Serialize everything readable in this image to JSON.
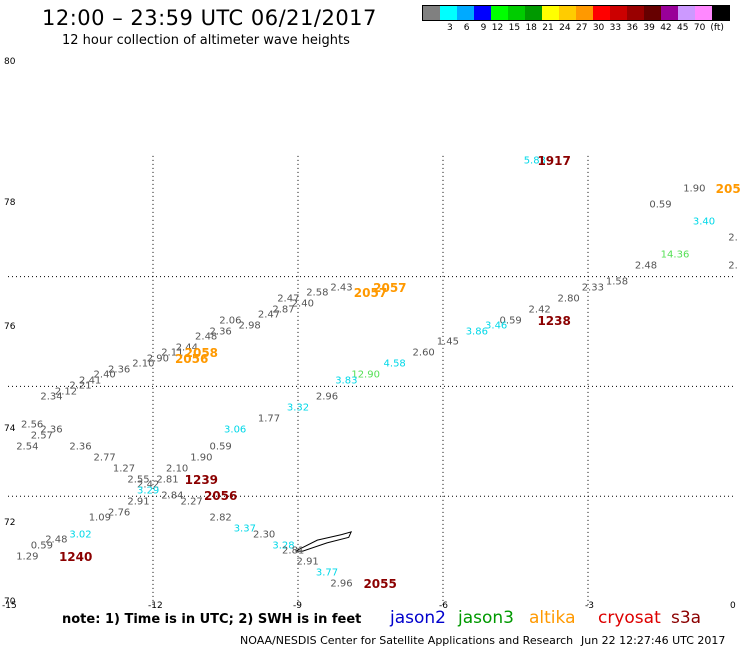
{
  "title": "12:00 – 23:59 UTC 06/21/2017",
  "subtitle": "12 hour collection of altimeter wave heights",
  "legend": {
    "colors": [
      "#808080",
      "#00ffff",
      "#00aaff",
      "#0000ff",
      "#00ff00",
      "#00cc00",
      "#009900",
      "#ffff00",
      "#ffcc00",
      "#ff9900",
      "#ff0000",
      "#cc0000",
      "#990000",
      "#660000",
      "#990099",
      "#cc99ff",
      "#ff88ff",
      "#000000"
    ],
    "ticks": [
      "3",
      "6",
      "9",
      "12",
      "15",
      "18",
      "21",
      "24",
      "27",
      "30",
      "33",
      "36",
      "39",
      "42",
      "45",
      "70"
    ],
    "unit": "(ft)"
  },
  "axes": {
    "y_ticks": [
      "80",
      "78",
      "76",
      "74",
      "72",
      "70"
    ],
    "x_ticks": [
      "-15",
      "-12",
      "-9",
      "-6",
      "-3",
      "0"
    ]
  },
  "labels": [
    {
      "t": "5.83",
      "s": "j2",
      "lon": -4.1,
      "lat": 78.1
    },
    {
      "t": "1917",
      "s": "cs",
      "lon": -3.7,
      "lat": 78.1
    },
    {
      "t": "1.90",
      "s": "gr",
      "lon": -0.8,
      "lat": 77.6
    },
    {
      "t": "205",
      "s": "al",
      "lon": -0.1,
      "lat": 77.6
    },
    {
      "t": "0.59",
      "s": "gr",
      "lon": -1.5,
      "lat": 77.3
    },
    {
      "t": "3.40",
      "s": "j2",
      "lon": -0.6,
      "lat": 77.0
    },
    {
      "t": "2.",
      "s": "gr",
      "lon": 0.0,
      "lat": 76.7
    },
    {
      "t": "2.",
      "s": "gr",
      "lon": 0.0,
      "lat": 76.2
    },
    {
      "t": "14.36",
      "s": "j3",
      "lon": -1.2,
      "lat": 76.4
    },
    {
      "t": "2.48",
      "s": "gr",
      "lon": -1.8,
      "lat": 76.2
    },
    {
      "t": "1.58",
      "s": "gr",
      "lon": -2.4,
      "lat": 75.9
    },
    {
      "t": "2.33",
      "s": "gr",
      "lon": -2.9,
      "lat": 75.8
    },
    {
      "t": "2.80",
      "s": "gr",
      "lon": -3.4,
      "lat": 75.6
    },
    {
      "t": "2.42",
      "s": "gr",
      "lon": -4.0,
      "lat": 75.4
    },
    {
      "t": "1238",
      "s": "cs",
      "lon": -3.7,
      "lat": 75.2
    },
    {
      "t": "0.59",
      "s": "gr",
      "lon": -4.6,
      "lat": 75.2
    },
    {
      "t": "3.46",
      "s": "j2",
      "lon": -4.9,
      "lat": 75.1
    },
    {
      "t": "3.86",
      "s": "j2",
      "lon": -5.3,
      "lat": 75.0
    },
    {
      "t": "1.45",
      "s": "gr",
      "lon": -5.9,
      "lat": 74.8
    },
    {
      "t": "2.60",
      "s": "gr",
      "lon": -6.4,
      "lat": 74.6
    },
    {
      "t": "4.58",
      "s": "j2",
      "lon": -7.0,
      "lat": 74.4
    },
    {
      "t": "12.90",
      "s": "j3",
      "lon": -7.6,
      "lat": 74.2
    },
    {
      "t": "3.83",
      "s": "j2",
      "lon": -8.0,
      "lat": 74.1
    },
    {
      "t": "2.96",
      "s": "gr",
      "lon": -8.4,
      "lat": 73.8
    },
    {
      "t": "3.32",
      "s": "j2",
      "lon": -9.0,
      "lat": 73.6
    },
    {
      "t": "1.77",
      "s": "gr",
      "lon": -9.6,
      "lat": 73.4
    },
    {
      "t": "3.06",
      "s": "j2",
      "lon": -10.3,
      "lat": 73.2
    },
    {
      "t": "0.59",
      "s": "gr",
      "lon": -10.6,
      "lat": 72.9
    },
    {
      "t": "1.90",
      "s": "gr",
      "lon": -11.0,
      "lat": 72.7
    },
    {
      "t": "2.10",
      "s": "gr",
      "lon": -11.5,
      "lat": 72.5
    },
    {
      "t": "1239",
      "s": "cs",
      "lon": -11.0,
      "lat": 72.3
    },
    {
      "t": "2.81",
      "s": "gr",
      "lon": -11.7,
      "lat": 72.3
    },
    {
      "t": "2.42",
      "s": "gr",
      "lon": -12.1,
      "lat": 72.2
    },
    {
      "t": "3.29",
      "s": "j2",
      "lon": -12.1,
      "lat": 72.1
    },
    {
      "t": "2.91",
      "s": "gr",
      "lon": -12.3,
      "lat": 71.9
    },
    {
      "t": "2.76",
      "s": "gr",
      "lon": -12.7,
      "lat": 71.7
    },
    {
      "t": "1.09",
      "s": "gr",
      "lon": -13.1,
      "lat": 71.6
    },
    {
      "t": "3.02",
      "s": "j2",
      "lon": -13.5,
      "lat": 71.3
    },
    {
      "t": "2.48",
      "s": "gr",
      "lon": -14.0,
      "lat": 71.2
    },
    {
      "t": "0.59",
      "s": "gr",
      "lon": -14.3,
      "lat": 71.1
    },
    {
      "t": "1240",
      "s": "cs",
      "lon": -13.6,
      "lat": 70.9
    },
    {
      "t": "1.29",
      "s": "gr",
      "lon": -14.6,
      "lat": 70.9
    },
    {
      "t": "2.56",
      "s": "gr",
      "lon": -14.5,
      "lat": 73.3
    },
    {
      "t": "2.36",
      "s": "gr",
      "lon": -14.1,
      "lat": 73.2
    },
    {
      "t": "2.57",
      "s": "gr",
      "lon": -14.3,
      "lat": 73.1
    },
    {
      "t": "2.54",
      "s": "gr",
      "lon": -14.6,
      "lat": 72.9
    },
    {
      "t": "2.36",
      "s": "gr",
      "lon": -13.5,
      "lat": 72.9
    },
    {
      "t": "2.77",
      "s": "gr",
      "lon": -13.0,
      "lat": 72.7
    },
    {
      "t": "1.27",
      "s": "gr",
      "lon": -12.6,
      "lat": 72.5
    },
    {
      "t": "2.55",
      "s": "gr",
      "lon": -12.3,
      "lat": 72.3
    },
    {
      "t": "2.84",
      "s": "gr",
      "lon": -11.6,
      "lat": 72.0
    },
    {
      "t": "2056",
      "s": "cs",
      "lon": -10.6,
      "lat": 72.0
    },
    {
      "t": "2.27",
      "s": "gr",
      "lon": -11.2,
      "lat": 71.9
    },
    {
      "t": "2.82",
      "s": "gr",
      "lon": -10.6,
      "lat": 71.6
    },
    {
      "t": "3.37",
      "s": "j2",
      "lon": -10.1,
      "lat": 71.4
    },
    {
      "t": "2.30",
      "s": "gr",
      "lon": -9.7,
      "lat": 71.3
    },
    {
      "t": "3.28",
      "s": "j2",
      "lon": -9.3,
      "lat": 71.1
    },
    {
      "t": "2.81",
      "s": "gr",
      "lon": -9.1,
      "lat": 71.0
    },
    {
      "t": "2.91",
      "s": "gr",
      "lon": -8.8,
      "lat": 70.8
    },
    {
      "t": "3.77",
      "s": "j2",
      "lon": -8.4,
      "lat": 70.6
    },
    {
      "t": "2.96",
      "s": "gr",
      "lon": -8.1,
      "lat": 70.4
    },
    {
      "t": "2055",
      "s": "cs",
      "lon": -7.3,
      "lat": 70.4
    },
    {
      "t": "2.34",
      "s": "gr",
      "lon": -14.1,
      "lat": 73.8
    },
    {
      "t": "2.12",
      "s": "gr",
      "lon": -13.8,
      "lat": 73.9
    },
    {
      "t": "2.21",
      "s": "gr",
      "lon": -13.5,
      "lat": 74.0
    },
    {
      "t": "2.41",
      "s": "gr",
      "lon": -13.3,
      "lat": 74.1
    },
    {
      "t": "2.40",
      "s": "gr",
      "lon": -13.0,
      "lat": 74.2
    },
    {
      "t": "2.36",
      "s": "gr",
      "lon": -12.7,
      "lat": 74.3
    },
    {
      "t": "2.10",
      "s": "gr",
      "lon": -12.2,
      "lat": 74.4
    },
    {
      "t": "2.90",
      "s": "gr",
      "lon": -11.9,
      "lat": 74.5
    },
    {
      "t": "2.44",
      "s": "gr",
      "lon": -11.3,
      "lat": 74.7
    },
    {
      "t": "2.11",
      "s": "gr",
      "lon": -11.6,
      "lat": 74.6
    },
    {
      "t": "2.48",
      "s": "gr",
      "lon": -10.9,
      "lat": 74.9
    },
    {
      "t": "2.36",
      "s": "gr",
      "lon": -10.6,
      "lat": 75.0
    },
    {
      "t": "2.98",
      "s": "gr",
      "lon": -10.0,
      "lat": 75.1
    },
    {
      "t": "2.06",
      "s": "gr",
      "lon": -10.4,
      "lat": 75.2
    },
    {
      "t": "2.47",
      "s": "gr",
      "lon": -9.6,
      "lat": 75.3
    },
    {
      "t": "2.87",
      "s": "gr",
      "lon": -9.3,
      "lat": 75.4
    },
    {
      "t": "2.40",
      "s": "gr",
      "lon": -8.9,
      "lat": 75.5
    },
    {
      "t": "2.47",
      "s": "gr",
      "lon": -9.2,
      "lat": 75.6
    },
    {
      "t": "2.58",
      "s": "gr",
      "lon": -8.6,
      "lat": 75.7
    },
    {
      "t": "2.43",
      "s": "gr",
      "lon": -8.1,
      "lat": 75.8
    },
    {
      "t": "2058",
      "s": "al",
      "lon": -11.0,
      "lat": 74.6
    },
    {
      "t": "2056",
      "s": "al",
      "lon": -11.2,
      "lat": 74.5
    },
    {
      "t": "2057",
      "s": "al",
      "lon": -7.1,
      "lat": 75.8
    },
    {
      "t": "2057",
      "s": "al",
      "lon": -7.5,
      "lat": 75.7
    }
  ],
  "note": "note:  1) Time is in UTC;  2) SWH is in feet",
  "satellites": [
    {
      "name": "jason2",
      "color": "#0000cc"
    },
    {
      "name": "jason3",
      "color": "#009900"
    },
    {
      "name": "altika",
      "color": "#ff9900"
    },
    {
      "name": "cryosat",
      "color": "#dd0000"
    },
    {
      "name": "s3a",
      "color": "#8b0000"
    }
  ],
  "credit": "NOAA/NESDIS Center for Satellite Applications and Research",
  "timestamp": "Jun 22 12:27:46 UTC 2017"
}
